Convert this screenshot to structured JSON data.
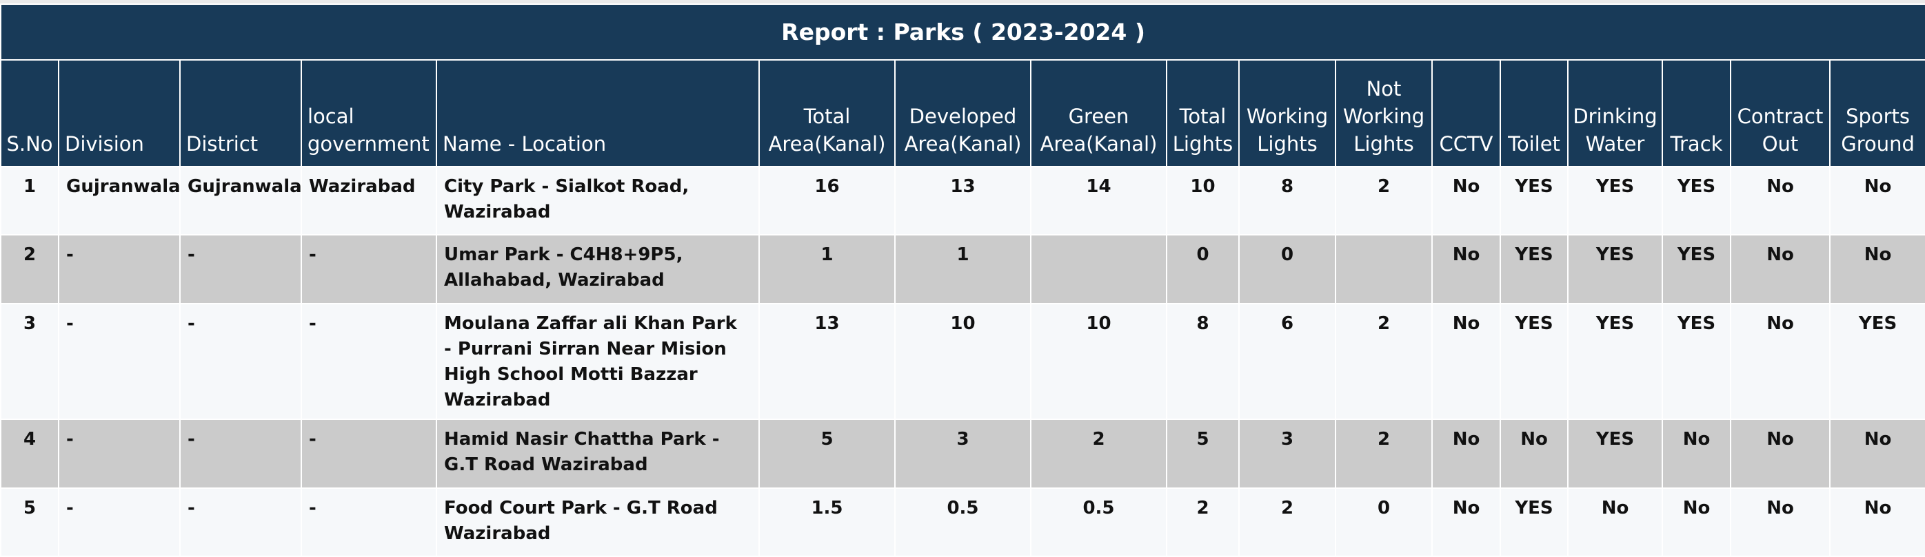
{
  "report": {
    "title": "Report : Parks ( 2023-2024 )",
    "columns": [
      "S.No",
      "Division",
      "District",
      "local government",
      "Name - Location",
      "Total Area(Kanal)",
      "Developed Area(Kanal)",
      "Green Area(Kanal)",
      "Total Lights",
      "Working Lights",
      "Not Working Lights",
      "CCTV",
      "Toilet",
      "Drinking Water",
      "Track",
      "Contract Out",
      "Sports Ground"
    ],
    "rows": [
      [
        "1",
        "Gujranwala",
        "Gujranwala",
        "Wazirabad",
        "City Park - Sialkot Road, Wazirabad",
        "16",
        "13",
        "14",
        "10",
        "8",
        "2",
        "No",
        "YES",
        "YES",
        "YES",
        "No",
        "No"
      ],
      [
        "2",
        "-",
        "-",
        "-",
        "Umar Park - C4H8+9P5, Allahabad, Wazirabad",
        "1",
        "1",
        "",
        "0",
        "0",
        "",
        "No",
        "YES",
        "YES",
        "YES",
        "No",
        "No"
      ],
      [
        "3",
        "-",
        "-",
        "-",
        "Moulana Zaffar ali Khan Park - Purrani Sirran Near Mision High School Motti Bazzar Wazirabad",
        "13",
        "10",
        "10",
        "8",
        "6",
        "2",
        "No",
        "YES",
        "YES",
        "YES",
        "No",
        "YES"
      ],
      [
        "4",
        "-",
        "-",
        "-",
        "Hamid Nasir Chattha Park - G.T Road Wazirabad",
        "5",
        "3",
        "2",
        "5",
        "3",
        "2",
        "No",
        "No",
        "YES",
        "No",
        "No",
        "No"
      ],
      [
        "5",
        "-",
        "-",
        "-",
        "Food Court Park - G.T Road Wazirabad",
        "1.5",
        "0.5",
        "0.5",
        "2",
        "2",
        "0",
        "No",
        "YES",
        "No",
        "No",
        "No",
        "No"
      ]
    ]
  }
}
